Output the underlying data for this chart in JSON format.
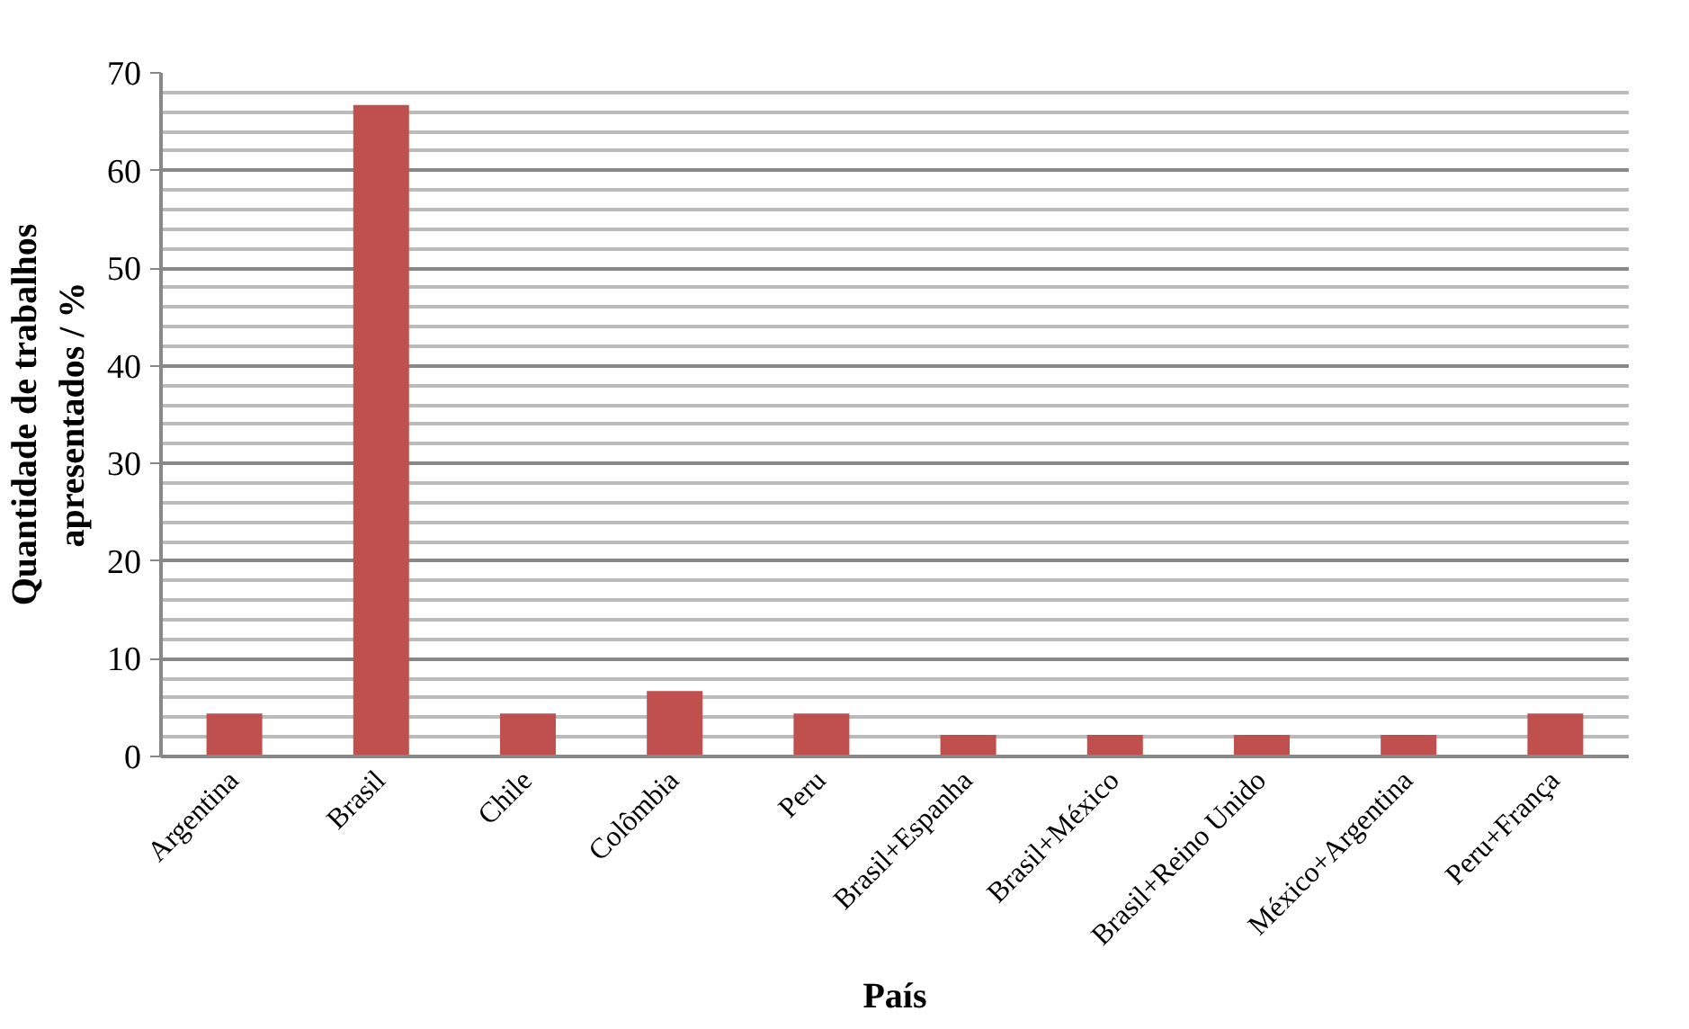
{
  "chart_data": {
    "type": "bar",
    "xlabel": "País",
    "ylabel": "Quantidade de trabalhos apresentados / %",
    "categories": [
      "Argentina",
      "Brasil",
      "Chile",
      "Colômbia",
      "Peru",
      "Brasil+Espanha",
      "Brasil+México",
      "Brasil+Reino Unido",
      "México+Argentina",
      "Peru+França"
    ],
    "values": [
      4.4,
      66.7,
      4.4,
      6.7,
      4.4,
      2.2,
      2.2,
      2.2,
      2.2,
      4.4
    ],
    "color": "#c0504d",
    "ylim": [
      0,
      70
    ],
    "yticks": [
      0,
      10,
      20,
      30,
      40,
      50,
      60,
      70
    ],
    "grid": "y"
  }
}
